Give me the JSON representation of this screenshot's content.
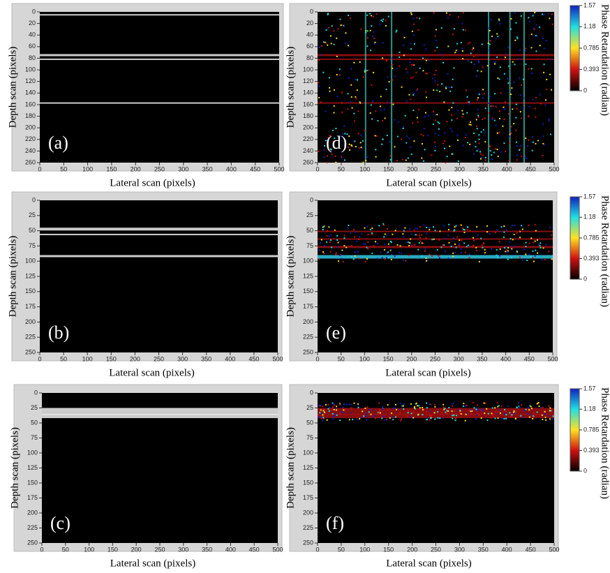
{
  "chart_data": [
    {
      "type": "image",
      "panel_label": "(a)",
      "xlabel": "Lateral scan (pixels)",
      "ylabel": "Depth scan (pixels)",
      "xlim": [
        0,
        500
      ],
      "xticks": [
        0,
        50,
        100,
        150,
        200,
        250,
        300,
        350,
        400,
        450,
        500
      ],
      "ylim": [
        0,
        260
      ],
      "yticks": [
        0,
        20,
        40,
        60,
        80,
        100,
        120,
        140,
        160,
        180,
        200,
        220,
        240,
        260
      ]
    },
    {
      "type": "image",
      "panel_label": "(b)",
      "xlabel": "Lateral scan (pixels)",
      "ylabel": "Depth scan (pixels)",
      "xlim": [
        0,
        500
      ],
      "xticks": [
        0,
        50,
        100,
        150,
        200,
        250,
        300,
        350,
        400,
        450,
        500
      ],
      "ylim": [
        0,
        250
      ],
      "yticks": [
        0,
        25,
        50,
        75,
        100,
        125,
        150,
        175,
        200,
        225,
        250
      ]
    },
    {
      "type": "image",
      "panel_label": "(c)",
      "xlabel": "Lateral scan (pixels)",
      "ylabel": "Depth scan (pixels)",
      "xlim": [
        0,
        500
      ],
      "xticks": [
        0,
        50,
        100,
        150,
        200,
        250,
        300,
        350,
        400,
        450,
        500
      ],
      "ylim": [
        0,
        250
      ],
      "yticks": [
        0,
        25,
        50,
        75,
        100,
        125,
        150,
        175,
        200,
        225,
        250
      ]
    },
    {
      "type": "image",
      "panel_label": "(d)",
      "xlabel": "Lateral scan (pixels)",
      "ylabel": "Depth scan (pixels)",
      "xlim": [
        0,
        500
      ],
      "xticks": [
        0,
        50,
        100,
        150,
        200,
        250,
        300,
        350,
        400,
        450,
        500
      ],
      "ylim": [
        0,
        260
      ],
      "yticks": [
        0,
        20,
        40,
        60,
        80,
        100,
        120,
        140,
        160,
        180,
        200,
        220,
        240,
        260
      ],
      "colorbar": {
        "label": "Phase Retardation (radian)",
        "lim": [
          0,
          1.57
        ],
        "ticks": [
          0,
          0.393,
          0.785,
          1.18,
          1.57
        ],
        "colors": [
          "#000000",
          "#d01010",
          "#ffe020",
          "#20e0e0",
          "#1020c0"
        ]
      }
    },
    {
      "type": "image",
      "panel_label": "(e)",
      "xlabel": "Lateral scan (pixels)",
      "ylabel": "Depth scan (pixels)",
      "xlim": [
        0,
        500
      ],
      "xticks": [
        0,
        50,
        100,
        150,
        200,
        250,
        300,
        350,
        400,
        450,
        500
      ],
      "ylim": [
        0,
        250
      ],
      "yticks": [
        0,
        25,
        50,
        75,
        100,
        125,
        150,
        175,
        200,
        225,
        250
      ],
      "colorbar": {
        "label": "Phase Retardation (radian)",
        "lim": [
          0,
          1.57
        ],
        "ticks": [
          0,
          0.393,
          0.785,
          1.18,
          1.57
        ],
        "colors": [
          "#000000",
          "#d01010",
          "#ffe020",
          "#20e0e0",
          "#1020c0"
        ]
      }
    },
    {
      "type": "image",
      "panel_label": "(f)",
      "xlabel": "Lateral scan (pixels)",
      "ylabel": "Depth scan (pixels)",
      "xlim": [
        0,
        500
      ],
      "xticks": [
        0,
        50,
        100,
        150,
        200,
        250,
        300,
        350,
        400,
        450,
        500
      ],
      "ylim": [
        0,
        250
      ],
      "yticks": [
        0,
        25,
        50,
        75,
        100,
        125,
        150,
        175,
        200,
        225,
        250
      ],
      "colorbar": {
        "label": "Phase Retardation (radian)",
        "lim": [
          0,
          1.57
        ],
        "ticks": [
          0,
          0.393,
          0.785,
          1.18,
          1.57
        ],
        "colors": [
          "#000000",
          "#d01010",
          "#ffe020",
          "#20e0e0",
          "#1020c0"
        ]
      }
    }
  ]
}
